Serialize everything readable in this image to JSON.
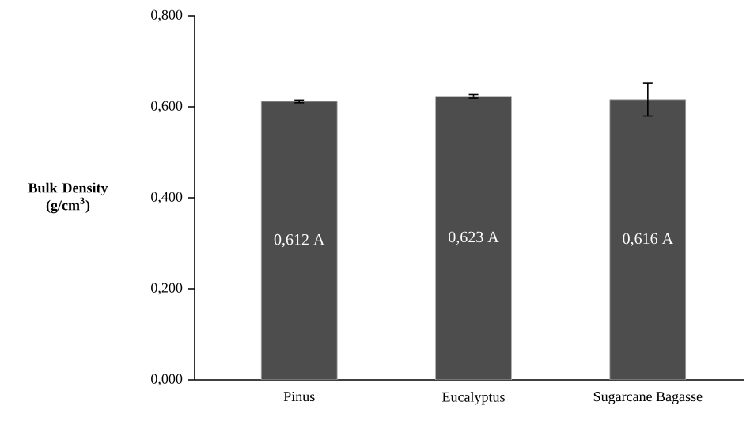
{
  "chart_data": {
    "type": "bar",
    "ylabel": "**Bulk Density (g/cm$^{3}$)**",
    "categories": [
      "Pinus",
      "Eucalyptus",
      "Sugarcane Bagasse"
    ],
    "values": [
      0.612,
      0.623,
      0.616
    ],
    "errors": [
      0.003,
      0.004,
      0.036
    ],
    "value_labels": [
      "0,612 A",
      "0,623 A",
      "0,616 A"
    ],
    "color": "#4d4d4d",
    "ylim": [
      0,
      0.8
    ],
    "yticks": [
      {
        "value": 0,
        "label": "0,000"
      },
      {
        "value": 0.2,
        "label": "0,200"
      },
      {
        "value": 0.4,
        "label": "0,400"
      },
      {
        "value": 0.6,
        "label": "0,600"
      },
      {
        "value": 0.8,
        "label": "0,800"
      }
    ],
    "grid": false
  }
}
